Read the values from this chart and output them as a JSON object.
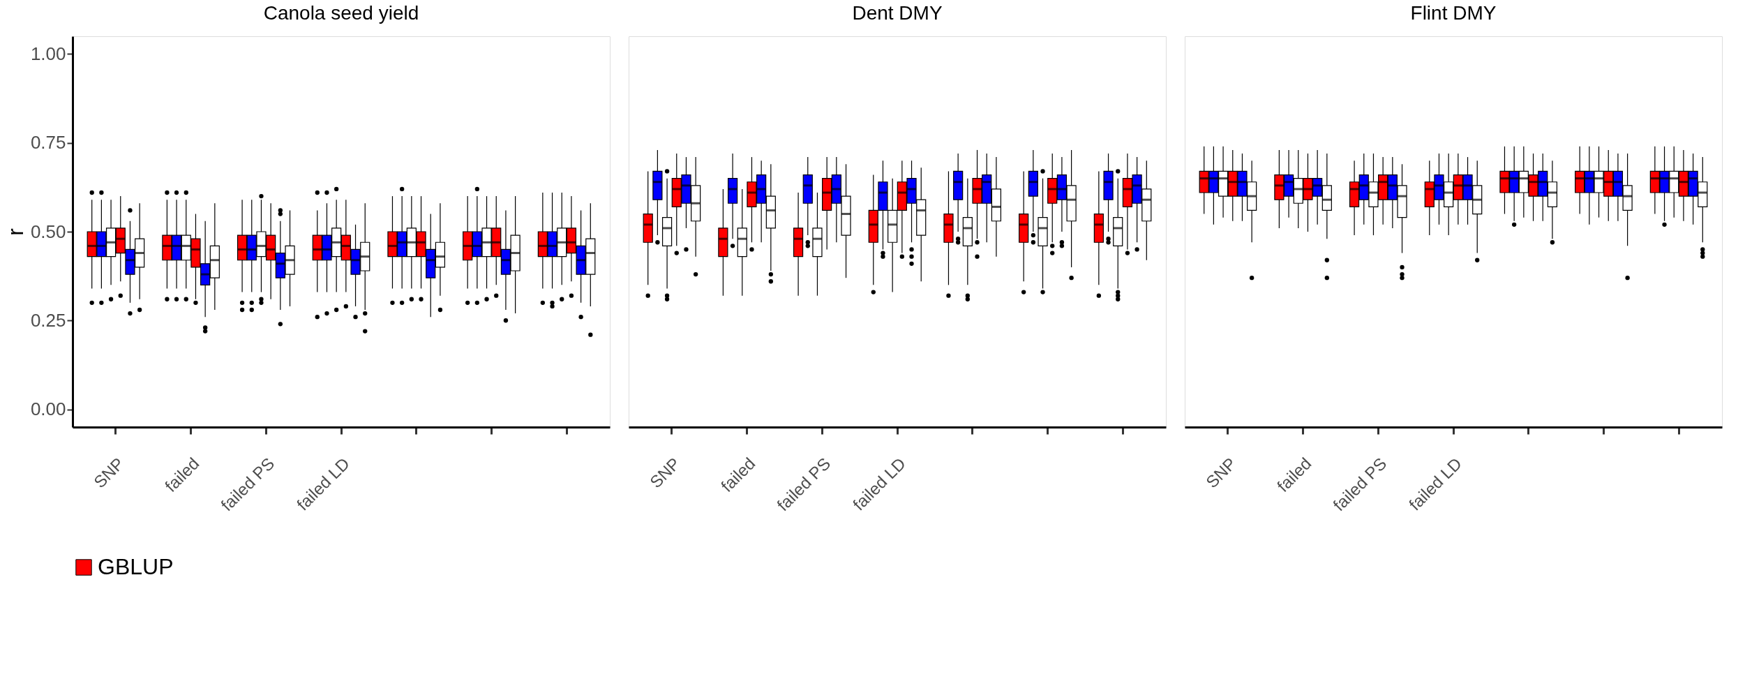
{
  "chart_data": [
    {
      "type": "box",
      "title": "Canola seed yield",
      "ylabel": "r",
      "categories": [
        "SNP",
        "failed",
        "failed PS",
        "failed LD",
        null,
        null,
        null
      ],
      "ylim": [
        -0.05,
        1.05
      ],
      "yticks": [
        {
          "value": 0,
          "label": "0.00"
        },
        0.25,
        {
          "value": 0.5,
          "label": "0.50"
        },
        0.75,
        {
          "value": 1,
          "label": "1.00"
        }
      ],
      "legend": "bottom",
      "series": [
        {
          "name": "GBLUP",
          "color": "#ff0000",
          "boxes": [
            {
              "low": 0.34,
              "q1": 0.43,
              "median": 0.46,
              "q3": 0.5,
              "high": 0.59,
              "outliers": [
                0.61,
                0.3
              ]
            },
            {
              "low": 0.34,
              "q1": 0.42,
              "median": 0.46,
              "q3": 0.49,
              "high": 0.59,
              "outliers": [
                0.61,
                0.31
              ]
            },
            {
              "low": 0.33,
              "q1": 0.42,
              "median": 0.45,
              "q3": 0.49,
              "high": 0.59,
              "outliers": [
                0.3,
                0.28
              ]
            },
            {
              "low": 0.33,
              "q1": 0.42,
              "median": 0.45,
              "q3": 0.49,
              "high": 0.56,
              "outliers": [
                0.61,
                0.26
              ]
            },
            {
              "low": 0.34,
              "q1": 0.43,
              "median": 0.46,
              "q3": 0.5,
              "high": 0.6,
              "outliers": [
                0.3
              ]
            },
            {
              "low": 0.34,
              "q1": 0.42,
              "median": 0.46,
              "q3": 0.5,
              "high": 0.6,
              "outliers": [
                0.3
              ]
            },
            {
              "low": 0.34,
              "q1": 0.43,
              "median": 0.46,
              "q3": 0.5,
              "high": 0.61,
              "outliers": [
                0.3
              ]
            }
          ]
        },
        {
          "color": "#0000ff",
          "boxes": [
            {
              "low": 0.34,
              "q1": 0.43,
              "median": 0.46,
              "q3": 0.5,
              "high": 0.59,
              "outliers": [
                0.61,
                0.3
              ]
            },
            {
              "low": 0.34,
              "q1": 0.42,
              "median": 0.46,
              "q3": 0.49,
              "high": 0.59,
              "outliers": [
                0.61,
                0.31
              ]
            },
            {
              "low": 0.33,
              "q1": 0.42,
              "median": 0.45,
              "q3": 0.49,
              "high": 0.59,
              "outliers": [
                0.3,
                0.28
              ]
            },
            {
              "low": 0.33,
              "q1": 0.42,
              "median": 0.45,
              "q3": 0.49,
              "high": 0.58,
              "outliers": [
                0.61,
                0.27
              ]
            },
            {
              "low": 0.34,
              "q1": 0.43,
              "median": 0.47,
              "q3": 0.5,
              "high": 0.6,
              "outliers": [
                0.62,
                0.3
              ]
            },
            {
              "low": 0.34,
              "q1": 0.43,
              "median": 0.46,
              "q3": 0.5,
              "high": 0.6,
              "outliers": [
                0.62,
                0.3
              ]
            },
            {
              "low": 0.34,
              "q1": 0.43,
              "median": 0.46,
              "q3": 0.5,
              "high": 0.61,
              "outliers": [
                0.3,
                0.29
              ]
            }
          ]
        },
        {
          "color": "#ffffff",
          "boxes": [
            {
              "low": 0.35,
              "q1": 0.43,
              "median": 0.47,
              "q3": 0.51,
              "high": 0.59,
              "outliers": [
                0.31
              ]
            },
            {
              "low": 0.34,
              "q1": 0.42,
              "median": 0.46,
              "q3": 0.49,
              "high": 0.59,
              "outliers": [
                0.61,
                0.31
              ]
            },
            {
              "low": 0.33,
              "q1": 0.43,
              "median": 0.46,
              "q3": 0.5,
              "high": 0.59,
              "outliers": [
                0.6,
                0.31,
                0.3
              ]
            },
            {
              "low": 0.33,
              "q1": 0.43,
              "median": 0.47,
              "q3": 0.51,
              "high": 0.59,
              "outliers": [
                0.62,
                0.28
              ]
            },
            {
              "low": 0.34,
              "q1": 0.43,
              "median": 0.47,
              "q3": 0.51,
              "high": 0.6,
              "outliers": [
                0.31
              ]
            },
            {
              "low": 0.34,
              "q1": 0.43,
              "median": 0.47,
              "q3": 0.51,
              "high": 0.6,
              "outliers": [
                0.31
              ]
            },
            {
              "low": 0.35,
              "q1": 0.43,
              "median": 0.47,
              "q3": 0.51,
              "high": 0.61,
              "outliers": [
                0.31
              ]
            }
          ]
        },
        {
          "color": "#ff0000",
          "boxes": [
            {
              "low": 0.36,
              "q1": 0.44,
              "median": 0.48,
              "q3": 0.51,
              "high": 0.6,
              "outliers": [
                0.32
              ]
            },
            {
              "low": 0.31,
              "q1": 0.4,
              "median": 0.45,
              "q3": 0.48,
              "high": 0.55,
              "outliers": [
                0.3
              ]
            },
            {
              "low": 0.31,
              "q1": 0.42,
              "median": 0.45,
              "q3": 0.49,
              "high": 0.58
            },
            {
              "low": 0.33,
              "q1": 0.42,
              "median": 0.46,
              "q3": 0.49,
              "high": 0.59,
              "outliers": [
                0.29
              ]
            },
            {
              "low": 0.34,
              "q1": 0.43,
              "median": 0.47,
              "q3": 0.5,
              "high": 0.6,
              "outliers": [
                0.31
              ]
            },
            {
              "low": 0.35,
              "q1": 0.43,
              "median": 0.47,
              "q3": 0.51,
              "high": 0.6,
              "outliers": [
                0.32
              ]
            },
            {
              "low": 0.36,
              "q1": 0.44,
              "median": 0.47,
              "q3": 0.51,
              "high": 0.6,
              "outliers": [
                0.32
              ]
            }
          ]
        },
        {
          "color": "#0000ff",
          "boxes": [
            {
              "low": 0.3,
              "q1": 0.38,
              "median": 0.42,
              "q3": 0.45,
              "high": 0.53,
              "outliers": [
                0.56,
                0.27
              ]
            },
            {
              "low": 0.26,
              "q1": 0.35,
              "median": 0.38,
              "q3": 0.41,
              "high": 0.53,
              "outliers": [
                0.23,
                0.22
              ]
            },
            {
              "low": 0.28,
              "q1": 0.37,
              "median": 0.41,
              "q3": 0.44,
              "high": 0.53,
              "outliers": [
                0.56,
                0.55,
                0.24
              ]
            },
            {
              "low": 0.29,
              "q1": 0.38,
              "median": 0.42,
              "q3": 0.45,
              "high": 0.52,
              "outliers": [
                0.26
              ]
            },
            {
              "low": 0.26,
              "q1": 0.37,
              "median": 0.42,
              "q3": 0.45,
              "high": 0.55
            },
            {
              "low": 0.28,
              "q1": 0.38,
              "median": 0.42,
              "q3": 0.45,
              "high": 0.56,
              "outliers": [
                0.25
              ]
            },
            {
              "low": 0.3,
              "q1": 0.38,
              "median": 0.42,
              "q3": 0.46,
              "high": 0.56,
              "outliers": [
                0.26
              ]
            }
          ]
        },
        {
          "color": "#ffffff",
          "boxes": [
            {
              "low": 0.31,
              "q1": 0.4,
              "median": 0.44,
              "q3": 0.48,
              "high": 0.58,
              "outliers": [
                0.28
              ]
            },
            {
              "low": 0.28,
              "q1": 0.37,
              "median": 0.42,
              "q3": 0.46,
              "high": 0.58
            },
            {
              "low": 0.29,
              "q1": 0.38,
              "median": 0.42,
              "q3": 0.46,
              "high": 0.56
            },
            {
              "low": 0.28,
              "q1": 0.39,
              "median": 0.43,
              "q3": 0.47,
              "high": 0.58,
              "outliers": [
                0.27,
                0.22
              ]
            },
            {
              "low": 0.32,
              "q1": 0.4,
              "median": 0.43,
              "q3": 0.47,
              "high": 0.58,
              "outliers": [
                0.28
              ]
            },
            {
              "low": 0.27,
              "q1": 0.39,
              "median": 0.44,
              "q3": 0.49,
              "high": 0.6
            },
            {
              "low": 0.29,
              "q1": 0.38,
              "median": 0.44,
              "q3": 0.48,
              "high": 0.58,
              "outliers": [
                0.21
              ]
            }
          ]
        }
      ]
    },
    {
      "type": "box",
      "title": "Dent DMY",
      "categories": [
        "SNP",
        "failed",
        "failed PS",
        "failed LD",
        null,
        null,
        null
      ],
      "ylim": [
        -0.05,
        1.05
      ],
      "tick_labels": "x",
      "series": [
        {
          "color": "#ff0000",
          "boxes": [
            {
              "low": 0.35,
              "q1": 0.47,
              "median": 0.52,
              "q3": 0.55,
              "high": 0.67,
              "outliers": [
                0.32
              ]
            },
            {
              "low": 0.32,
              "q1": 0.43,
              "median": 0.48,
              "q3": 0.51,
              "high": 0.62
            },
            {
              "low": 0.32,
              "q1": 0.43,
              "median": 0.48,
              "q3": 0.51,
              "high": 0.61
            },
            {
              "low": 0.35,
              "q1": 0.47,
              "median": 0.52,
              "q3": 0.56,
              "high": 0.66,
              "outliers": [
                0.33
              ]
            },
            {
              "low": 0.35,
              "q1": 0.47,
              "median": 0.52,
              "q3": 0.55,
              "high": 0.67,
              "outliers": [
                0.32
              ]
            },
            {
              "low": 0.36,
              "q1": 0.47,
              "median": 0.52,
              "q3": 0.55,
              "high": 0.67,
              "outliers": [
                0.33
              ]
            },
            {
              "low": 0.35,
              "q1": 0.47,
              "median": 0.52,
              "q3": 0.55,
              "high": 0.67,
              "outliers": [
                0.32
              ]
            }
          ]
        },
        {
          "color": "#0000ff",
          "boxes": [
            {
              "low": 0.49,
              "q1": 0.59,
              "median": 0.64,
              "q3": 0.67,
              "high": 0.73,
              "outliers": [
                0.47
              ]
            },
            {
              "low": 0.48,
              "q1": 0.58,
              "median": 0.62,
              "q3": 0.65,
              "high": 0.72,
              "outliers": [
                0.46
              ]
            },
            {
              "low": 0.49,
              "q1": 0.58,
              "median": 0.63,
              "q3": 0.66,
              "high": 0.71,
              "outliers": [
                0.47,
                0.46
              ]
            },
            {
              "low": 0.45,
              "q1": 0.56,
              "median": 0.61,
              "q3": 0.64,
              "high": 0.7,
              "outliers": [
                0.44,
                0.43
              ]
            },
            {
              "low": 0.5,
              "q1": 0.59,
              "median": 0.64,
              "q3": 0.67,
              "high": 0.72,
              "outliers": [
                0.48,
                0.47
              ]
            },
            {
              "low": 0.5,
              "q1": 0.6,
              "median": 0.64,
              "q3": 0.67,
              "high": 0.73,
              "outliers": [
                0.49,
                0.47
              ]
            },
            {
              "low": 0.5,
              "q1": 0.59,
              "median": 0.64,
              "q3": 0.67,
              "high": 0.72,
              "outliers": [
                0.48,
                0.47
              ]
            }
          ]
        },
        {
          "color": "#ffffff",
          "boxes": [
            {
              "low": 0.34,
              "q1": 0.46,
              "median": 0.51,
              "q3": 0.54,
              "high": 0.65,
              "outliers": [
                0.67,
                0.32,
                0.31
              ]
            },
            {
              "low": 0.32,
              "q1": 0.43,
              "median": 0.48,
              "q3": 0.51,
              "high": 0.62
            },
            {
              "low": 0.32,
              "q1": 0.43,
              "median": 0.48,
              "q3": 0.51,
              "high": 0.61
            },
            {
              "low": 0.33,
              "q1": 0.47,
              "median": 0.52,
              "q3": 0.56,
              "high": 0.65
            },
            {
              "low": 0.35,
              "q1": 0.46,
              "median": 0.51,
              "q3": 0.54,
              "high": 0.65,
              "outliers": [
                0.32,
                0.31
              ]
            },
            {
              "low": 0.34,
              "q1": 0.46,
              "median": 0.51,
              "q3": 0.54,
              "high": 0.65,
              "outliers": [
                0.67,
                0.33
              ]
            },
            {
              "low": 0.34,
              "q1": 0.46,
              "median": 0.51,
              "q3": 0.54,
              "high": 0.65,
              "outliers": [
                0.67,
                0.33,
                0.32,
                0.31
              ]
            }
          ]
        },
        {
          "color": "#ff0000",
          "boxes": [
            {
              "low": 0.46,
              "q1": 0.57,
              "median": 0.62,
              "q3": 0.65,
              "high": 0.72,
              "outliers": [
                0.44
              ]
            },
            {
              "low": 0.47,
              "q1": 0.57,
              "median": 0.61,
              "q3": 0.64,
              "high": 0.71,
              "outliers": [
                0.45
              ]
            },
            {
              "low": 0.45,
              "q1": 0.56,
              "median": 0.61,
              "q3": 0.65,
              "high": 0.71
            },
            {
              "low": 0.44,
              "q1": 0.56,
              "median": 0.61,
              "q3": 0.64,
              "high": 0.7,
              "outliers": [
                0.43
              ]
            },
            {
              "low": 0.48,
              "q1": 0.58,
              "median": 0.62,
              "q3": 0.65,
              "high": 0.73,
              "outliers": [
                0.47,
                0.43
              ]
            },
            {
              "low": 0.47,
              "q1": 0.58,
              "median": 0.62,
              "q3": 0.65,
              "high": 0.72,
              "outliers": [
                0.46,
                0.44
              ]
            },
            {
              "low": 0.45,
              "q1": 0.57,
              "median": 0.62,
              "q3": 0.65,
              "high": 0.72,
              "outliers": [
                0.44
              ]
            }
          ]
        },
        {
          "color": "#0000ff",
          "boxes": [
            {
              "low": 0.51,
              "q1": 0.58,
              "median": 0.63,
              "q3": 0.66,
              "high": 0.71,
              "outliers": [
                0.45
              ]
            },
            {
              "low": 0.47,
              "q1": 0.58,
              "median": 0.62,
              "q3": 0.66,
              "high": 0.7
            },
            {
              "low": 0.47,
              "q1": 0.58,
              "median": 0.62,
              "q3": 0.66,
              "high": 0.71
            },
            {
              "low": 0.47,
              "q1": 0.58,
              "median": 0.62,
              "q3": 0.65,
              "high": 0.7,
              "outliers": [
                0.45,
                0.43,
                0.41
              ]
            },
            {
              "low": 0.47,
              "q1": 0.58,
              "median": 0.64,
              "q3": 0.66,
              "high": 0.72
            },
            {
              "low": 0.5,
              "q1": 0.59,
              "median": 0.62,
              "q3": 0.66,
              "high": 0.71,
              "outliers": [
                0.47,
                0.46
              ]
            },
            {
              "low": 0.47,
              "q1": 0.58,
              "median": 0.63,
              "q3": 0.66,
              "high": 0.71,
              "outliers": [
                0.45
              ]
            }
          ]
        },
        {
          "color": "#ffffff",
          "boxes": [
            {
              "low": 0.43,
              "q1": 0.53,
              "median": 0.58,
              "q3": 0.63,
              "high": 0.71,
              "outliers": [
                0.38
              ]
            },
            {
              "low": 0.39,
              "q1": 0.51,
              "median": 0.56,
              "q3": 0.6,
              "high": 0.69,
              "outliers": [
                0.38,
                0.36
              ]
            },
            {
              "low": 0.37,
              "q1": 0.49,
              "median": 0.55,
              "q3": 0.6,
              "high": 0.69
            },
            {
              "low": 0.36,
              "q1": 0.49,
              "median": 0.56,
              "q3": 0.59,
              "high": 0.68
            },
            {
              "low": 0.43,
              "q1": 0.53,
              "median": 0.57,
              "q3": 0.62,
              "high": 0.71
            },
            {
              "low": 0.4,
              "q1": 0.53,
              "median": 0.59,
              "q3": 0.63,
              "high": 0.73,
              "outliers": [
                0.37
              ]
            },
            {
              "low": 0.42,
              "q1": 0.53,
              "median": 0.59,
              "q3": 0.62,
              "high": 0.7
            }
          ]
        }
      ]
    },
    {
      "type": "box",
      "title": "Flint DMY",
      "categories": [
        "SNP",
        "failed",
        "failed PS",
        "failed LD",
        null,
        null,
        null
      ],
      "ylim": [
        -0.05,
        1.05
      ],
      "tick_labels": "x",
      "series": [
        {
          "color": "#ff0000",
          "boxes": [
            {
              "low": 0.55,
              "q1": 0.61,
              "median": 0.65,
              "q3": 0.67,
              "high": 0.74
            },
            {
              "low": 0.51,
              "q1": 0.59,
              "median": 0.63,
              "q3": 0.66,
              "high": 0.73
            },
            {
              "low": 0.49,
              "q1": 0.57,
              "median": 0.62,
              "q3": 0.64,
              "high": 0.7
            },
            {
              "low": 0.49,
              "q1": 0.57,
              "median": 0.62,
              "q3": 0.64,
              "high": 0.7
            },
            {
              "low": 0.55,
              "q1": 0.61,
              "median": 0.65,
              "q3": 0.67,
              "high": 0.74
            },
            {
              "low": 0.55,
              "q1": 0.61,
              "median": 0.65,
              "q3": 0.67,
              "high": 0.74
            },
            {
              "low": 0.55,
              "q1": 0.61,
              "median": 0.65,
              "q3": 0.67,
              "high": 0.74
            }
          ]
        },
        {
          "color": "#0000ff",
          "boxes": [
            {
              "low": 0.52,
              "q1": 0.61,
              "median": 0.65,
              "q3": 0.67,
              "high": 0.74
            },
            {
              "low": 0.54,
              "q1": 0.6,
              "median": 0.64,
              "q3": 0.66,
              "high": 0.73
            },
            {
              "low": 0.52,
              "q1": 0.59,
              "median": 0.63,
              "q3": 0.66,
              "high": 0.72
            },
            {
              "low": 0.52,
              "q1": 0.59,
              "median": 0.63,
              "q3": 0.66,
              "high": 0.72
            },
            {
              "low": 0.53,
              "q1": 0.61,
              "median": 0.65,
              "q3": 0.67,
              "high": 0.74,
              "outliers": [
                0.52
              ]
            },
            {
              "low": 0.52,
              "q1": 0.61,
              "median": 0.65,
              "q3": 0.67,
              "high": 0.74
            },
            {
              "low": 0.53,
              "q1": 0.61,
              "median": 0.65,
              "q3": 0.67,
              "high": 0.74,
              "outliers": [
                0.52
              ]
            }
          ]
        },
        {
          "color": "#ffffff",
          "boxes": [
            {
              "low": 0.54,
              "q1": 0.6,
              "median": 0.65,
              "q3": 0.67,
              "high": 0.74
            },
            {
              "low": 0.51,
              "q1": 0.58,
              "median": 0.62,
              "q3": 0.65,
              "high": 0.73
            },
            {
              "low": 0.49,
              "q1": 0.57,
              "median": 0.61,
              "q3": 0.64,
              "high": 0.72
            },
            {
              "low": 0.49,
              "q1": 0.57,
              "median": 0.61,
              "q3": 0.64,
              "high": 0.72
            },
            {
              "low": 0.54,
              "q1": 0.61,
              "median": 0.65,
              "q3": 0.67,
              "high": 0.74
            },
            {
              "low": 0.54,
              "q1": 0.61,
              "median": 0.65,
              "q3": 0.67,
              "high": 0.74
            },
            {
              "low": 0.54,
              "q1": 0.61,
              "median": 0.65,
              "q3": 0.67,
              "high": 0.74
            }
          ]
        },
        {
          "color": "#ff0000",
          "boxes": [
            {
              "low": 0.53,
              "q1": 0.6,
              "median": 0.64,
              "q3": 0.67,
              "high": 0.73
            },
            {
              "low": 0.5,
              "q1": 0.59,
              "median": 0.62,
              "q3": 0.65,
              "high": 0.72
            },
            {
              "low": 0.52,
              "q1": 0.59,
              "median": 0.64,
              "q3": 0.66,
              "high": 0.71
            },
            {
              "low": 0.52,
              "q1": 0.59,
              "median": 0.63,
              "q3": 0.66,
              "high": 0.72
            },
            {
              "low": 0.53,
              "q1": 0.6,
              "median": 0.64,
              "q3": 0.66,
              "high": 0.72
            },
            {
              "low": 0.53,
              "q1": 0.6,
              "median": 0.64,
              "q3": 0.67,
              "high": 0.73
            },
            {
              "low": 0.53,
              "q1": 0.6,
              "median": 0.64,
              "q3": 0.67,
              "high": 0.73
            }
          ]
        },
        {
          "color": "#0000ff",
          "boxes": [
            {
              "low": 0.53,
              "q1": 0.6,
              "median": 0.64,
              "q3": 0.67,
              "high": 0.72
            },
            {
              "low": 0.52,
              "q1": 0.6,
              "median": 0.63,
              "q3": 0.65,
              "high": 0.73
            },
            {
              "low": 0.51,
              "q1": 0.59,
              "median": 0.63,
              "q3": 0.66,
              "high": 0.71
            },
            {
              "low": 0.52,
              "q1": 0.59,
              "median": 0.63,
              "q3": 0.66,
              "high": 0.71
            },
            {
              "low": 0.53,
              "q1": 0.6,
              "median": 0.64,
              "q3": 0.67,
              "high": 0.72
            },
            {
              "low": 0.53,
              "q1": 0.6,
              "median": 0.64,
              "q3": 0.67,
              "high": 0.72
            },
            {
              "low": 0.52,
              "q1": 0.6,
              "median": 0.65,
              "q3": 0.67,
              "high": 0.72
            }
          ]
        },
        {
          "color": "#ffffff",
          "boxes": [
            {
              "low": 0.47,
              "q1": 0.56,
              "median": 0.6,
              "q3": 0.64,
              "high": 0.7,
              "outliers": [
                0.37
              ]
            },
            {
              "low": 0.48,
              "q1": 0.56,
              "median": 0.59,
              "q3": 0.63,
              "high": 0.72,
              "outliers": [
                0.42,
                0.37
              ]
            },
            {
              "low": 0.44,
              "q1": 0.54,
              "median": 0.6,
              "q3": 0.63,
              "high": 0.69,
              "outliers": [
                0.4,
                0.38,
                0.37
              ]
            },
            {
              "low": 0.44,
              "q1": 0.55,
              "median": 0.59,
              "q3": 0.63,
              "high": 0.7,
              "outliers": [
                0.42
              ]
            },
            {
              "low": 0.48,
              "q1": 0.57,
              "median": 0.61,
              "q3": 0.64,
              "high": 0.7,
              "outliers": [
                0.47
              ]
            },
            {
              "low": 0.46,
              "q1": 0.56,
              "median": 0.6,
              "q3": 0.63,
              "high": 0.72,
              "outliers": [
                0.37
              ]
            },
            {
              "low": 0.47,
              "q1": 0.57,
              "median": 0.61,
              "q3": 0.64,
              "high": 0.71,
              "outliers": [
                0.45,
                0.44,
                0.43
              ]
            }
          ]
        }
      ]
    }
  ]
}
